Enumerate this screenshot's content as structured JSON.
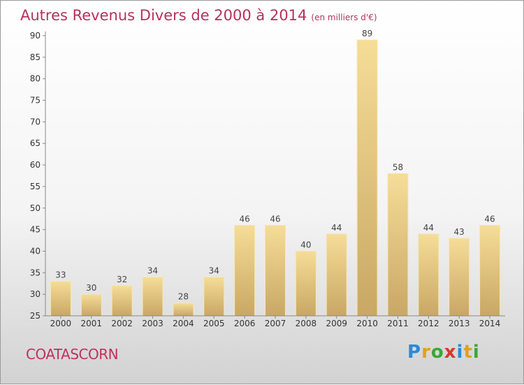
{
  "header": {
    "title": "Autres Revenus Divers de 2000 à 2014",
    "unit": "(en milliers d'€)"
  },
  "footer": {
    "place": "COATASCORN",
    "brand_letters": [
      {
        "ch": "P",
        "color": "#2b8ad6"
      },
      {
        "ch": "r",
        "color": "#e0a020"
      },
      {
        "ch": "o",
        "color": "#38a838"
      },
      {
        "ch": "x",
        "color": "#d23a2a"
      },
      {
        "ch": "i",
        "color": "#2b8ad6"
      },
      {
        "ch": "t",
        "color": "#e0a020"
      },
      {
        "ch": "i",
        "color": "#38a838"
      }
    ]
  },
  "chart_data": {
    "type": "bar",
    "categories": [
      "2000",
      "2001",
      "2002",
      "2003",
      "2004",
      "2005",
      "2006",
      "2007",
      "2008",
      "2009",
      "2010",
      "2011",
      "2012",
      "2013",
      "2014"
    ],
    "values": [
      33,
      30,
      32,
      34,
      28,
      34,
      46,
      46,
      40,
      44,
      89,
      58,
      44,
      43,
      46
    ],
    "ylim": [
      25,
      90
    ],
    "yticks": [
      25,
      30,
      35,
      40,
      45,
      50,
      55,
      60,
      65,
      70,
      75,
      80,
      85,
      90
    ],
    "grid": false,
    "bar_color": "#e9c97a"
  }
}
